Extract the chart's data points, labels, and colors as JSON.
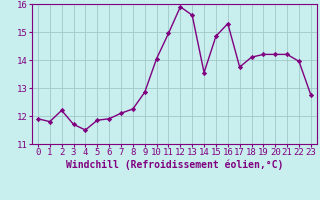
{
  "x": [
    0,
    1,
    2,
    3,
    4,
    5,
    6,
    7,
    8,
    9,
    10,
    11,
    12,
    13,
    14,
    15,
    16,
    17,
    18,
    19,
    20,
    21,
    22,
    23
  ],
  "y": [
    11.9,
    11.8,
    12.2,
    11.7,
    11.5,
    11.85,
    11.9,
    12.1,
    12.25,
    12.85,
    14.05,
    14.95,
    15.9,
    15.6,
    13.55,
    14.85,
    15.3,
    13.75,
    14.1,
    14.2,
    14.2,
    14.2,
    13.95,
    12.75
  ],
  "line_color": "#800080",
  "marker": "D",
  "marker_size": 2.2,
  "bg_color": "#c8eeee",
  "grid_color": "#a0c8c8",
  "xlabel": "Windchill (Refroidissement éolien,°C)",
  "xlabel_color": "#800080",
  "tick_color": "#800080",
  "spine_color": "#800080",
  "ylim": [
    11,
    16
  ],
  "xlim_min": -0.5,
  "xlim_max": 23.5,
  "yticks": [
    11,
    12,
    13,
    14,
    15,
    16
  ],
  "xticks": [
    0,
    1,
    2,
    3,
    4,
    5,
    6,
    7,
    8,
    9,
    10,
    11,
    12,
    13,
    14,
    15,
    16,
    17,
    18,
    19,
    20,
    21,
    22,
    23
  ],
  "linewidth": 1.0,
  "font_size": 6.5,
  "xlabel_fontsize": 7
}
